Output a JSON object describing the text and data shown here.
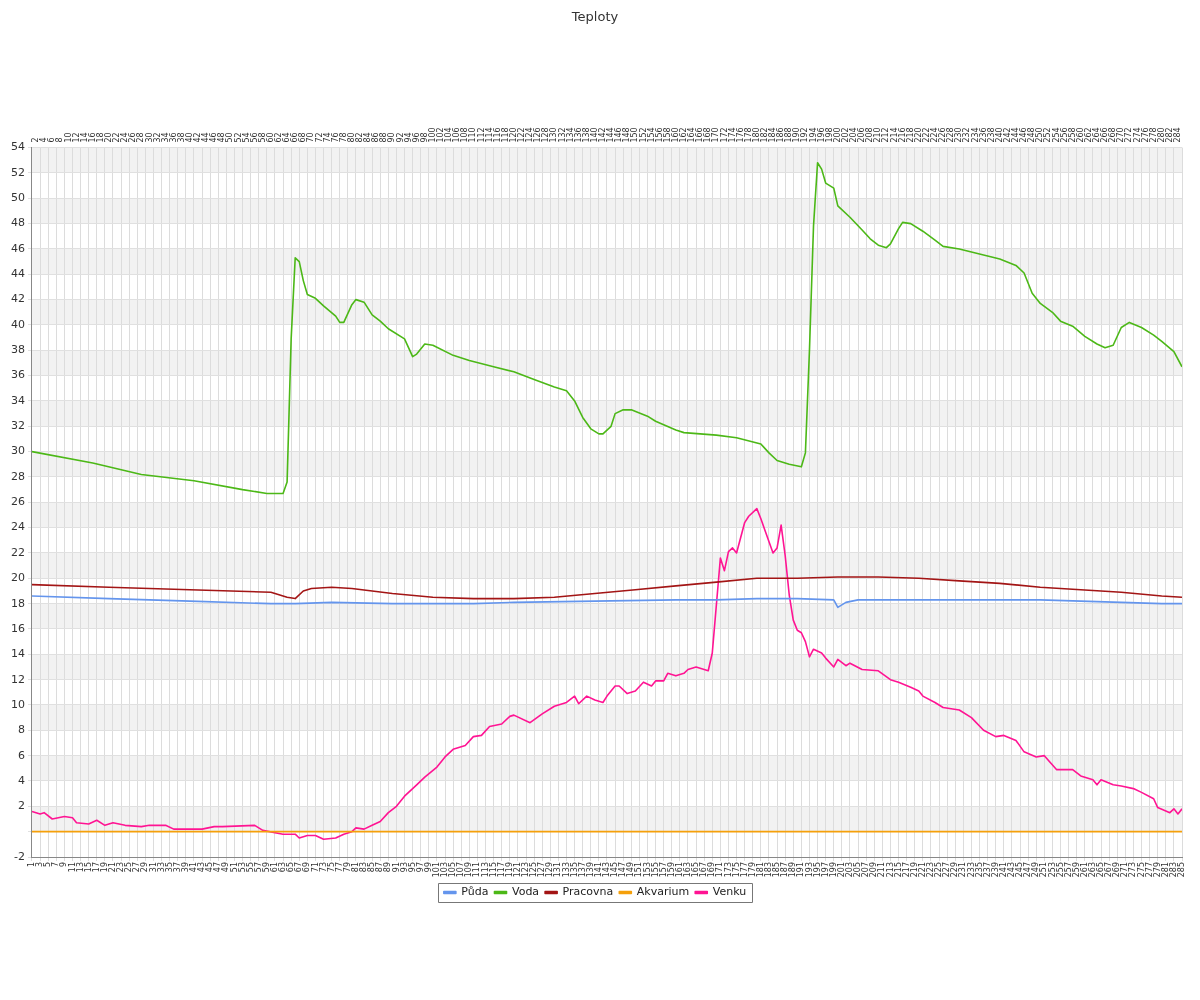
{
  "chart_data": {
    "type": "line",
    "title": "Teploty",
    "grid": true,
    "legend": "bottom",
    "marker": "none",
    "line_style": "solid",
    "xlim": [
      1,
      285
    ],
    "xticks": [
      1,
      3,
      5,
      7,
      9,
      11,
      13,
      15,
      17,
      19,
      21,
      23,
      25,
      27,
      29,
      31,
      33,
      35,
      37,
      39,
      41,
      43,
      45,
      47,
      49,
      51,
      53,
      55,
      57,
      59,
      61,
      63,
      65,
      67,
      69,
      71,
      73,
      75,
      77,
      79,
      81,
      83,
      85,
      87,
      89,
      91,
      93,
      95,
      97,
      99,
      101,
      103,
      105,
      107,
      109,
      111,
      113,
      115,
      117,
      119,
      121,
      123,
      125,
      127,
      129,
      131,
      133,
      135,
      137,
      139,
      141,
      143,
      145,
      147,
      149,
      151,
      153,
      155,
      157,
      159,
      161,
      163,
      165,
      167,
      169,
      171,
      173,
      175,
      177,
      179,
      181,
      183,
      185,
      187,
      189,
      191,
      193,
      195,
      197,
      199,
      201,
      203,
      205,
      207,
      209,
      211,
      213,
      215,
      217,
      219,
      221,
      223,
      225,
      227,
      229,
      231,
      233,
      235,
      237,
      239,
      241,
      243,
      245,
      247,
      249,
      251,
      253,
      255,
      257,
      259,
      261,
      263,
      265,
      267,
      269,
      271,
      273,
      275,
      277,
      279,
      281,
      283,
      285
    ],
    "x2lim": [
      1,
      285
    ],
    "x2ticks": [
      2,
      4,
      6,
      8,
      10,
      12,
      14,
      16,
      18,
      20,
      22,
      24,
      26,
      28,
      30,
      32,
      34,
      36,
      38,
      40,
      42,
      44,
      46,
      48,
      50,
      52,
      54,
      56,
      58,
      60,
      62,
      64,
      66,
      68,
      70,
      72,
      74,
      76,
      78,
      80,
      82,
      84,
      86,
      88,
      90,
      92,
      94,
      96,
      98,
      100,
      102,
      104,
      106,
      108,
      110,
      112,
      114,
      116,
      118,
      120,
      122,
      124,
      126,
      128,
      130,
      132,
      134,
      136,
      138,
      140,
      142,
      144,
      146,
      148,
      150,
      152,
      154,
      156,
      158,
      160,
      162,
      164,
      166,
      168,
      170,
      172,
      174,
      176,
      178,
      180,
      182,
      184,
      186,
      188,
      190,
      192,
      194,
      196,
      198,
      200,
      202,
      204,
      206,
      208,
      210,
      212,
      214,
      216,
      218,
      220,
      222,
      224,
      226,
      228,
      230,
      232,
      234,
      236,
      238,
      240,
      242,
      244,
      246,
      248,
      250,
      252,
      254,
      256,
      258,
      260,
      262,
      264,
      266,
      268,
      270,
      272,
      274,
      276,
      278,
      280,
      282,
      284
    ],
    "ylim": [
      -2,
      54
    ],
    "yticks": [
      -2,
      {
        "value": 0,
        "label": null
      },
      2,
      4,
      6,
      8,
      10,
      12,
      14,
      16,
      18,
      20,
      22,
      24,
      26,
      28,
      30,
      32,
      34,
      36,
      38,
      40,
      42,
      44,
      46,
      48,
      50,
      52,
      54
    ],
    "series": [
      {
        "name": "Půda",
        "color": "#6495ed",
        "x": [
          1,
          20,
          40,
          60,
          66,
          75,
          90,
          110,
          120,
          140,
          160,
          170,
          180,
          190,
          199,
          200,
          202,
          205,
          240,
          250,
          260,
          270,
          280,
          285
        ],
        "values": [
          18.6,
          18.4,
          18.2,
          18.0,
          18.0,
          18.1,
          18.0,
          18.0,
          18.1,
          18.2,
          18.3,
          18.3,
          18.4,
          18.4,
          18.3,
          17.7,
          18.1,
          18.3,
          18.3,
          18.3,
          18.2,
          18.1,
          18.0,
          18.0
        ]
      },
      {
        "name": "Voda",
        "color": "#4cb817",
        "x": [
          1,
          16,
          28,
          41,
          53,
          59,
          63,
          64,
          65,
          66,
          67,
          68,
          69,
          71,
          73,
          76,
          77,
          78,
          80,
          81,
          83,
          85,
          87,
          89,
          93,
          95,
          96,
          98,
          100,
          105,
          109,
          115,
          120,
          125,
          130,
          133,
          135,
          137,
          139,
          141,
          142,
          144,
          145,
          147,
          149,
          153,
          155,
          160,
          162,
          170,
          175,
          181,
          183,
          185,
          188,
          191,
          192,
          193,
          194,
          195,
          196,
          197,
          199,
          200,
          203,
          206,
          208,
          210,
          212,
          213,
          215,
          216,
          218,
          221,
          224,
          226,
          230,
          235,
          240,
          244,
          246,
          248,
          250,
          253,
          255,
          258,
          261,
          264,
          266,
          268,
          270,
          272,
          275,
          278,
          280,
          283,
          285
        ],
        "values": [
          30.0,
          29.1,
          28.2,
          27.7,
          27.0,
          26.7,
          26.7,
          27.6,
          38.9,
          45.3,
          45.0,
          43.5,
          42.4,
          42.1,
          41.5,
          40.7,
          40.2,
          40.2,
          41.6,
          42.0,
          41.8,
          40.8,
          40.3,
          39.7,
          38.9,
          37.5,
          37.7,
          38.5,
          38.4,
          37.6,
          37.2,
          36.7,
          36.3,
          35.7,
          35.1,
          34.8,
          34.0,
          32.7,
          31.8,
          31.4,
          31.4,
          32.0,
          33.0,
          33.3,
          33.3,
          32.8,
          32.4,
          31.7,
          31.5,
          31.3,
          31.1,
          30.6,
          29.9,
          29.3,
          29.0,
          28.8,
          29.9,
          38.0,
          47.8,
          52.8,
          52.3,
          51.2,
          50.8,
          49.4,
          48.5,
          47.5,
          46.8,
          46.3,
          46.1,
          46.4,
          47.6,
          48.1,
          48.0,
          47.4,
          46.7,
          46.2,
          46.0,
          45.6,
          45.2,
          44.7,
          44.1,
          42.5,
          41.7,
          41.0,
          40.3,
          39.9,
          39.1,
          38.5,
          38.2,
          38.4,
          39.8,
          40.2,
          39.8,
          39.2,
          38.7,
          37.9,
          36.7
        ]
      },
      {
        "name": "Pracovna",
        "color": "#a31515",
        "x": [
          1,
          20,
          40,
          60,
          64,
          66,
          68,
          70,
          75,
          80,
          85,
          90,
          100,
          110,
          120,
          130,
          140,
          150,
          160,
          170,
          180,
          190,
          200,
          210,
          220,
          230,
          240,
          250,
          260,
          270,
          280,
          285
        ],
        "values": [
          19.5,
          19.3,
          19.1,
          18.9,
          18.5,
          18.4,
          19.0,
          19.2,
          19.3,
          19.2,
          19.0,
          18.8,
          18.5,
          18.4,
          18.4,
          18.5,
          18.8,
          19.1,
          19.4,
          19.7,
          20.0,
          20.0,
          20.1,
          20.1,
          20.0,
          19.8,
          19.6,
          19.3,
          19.1,
          18.9,
          18.6,
          18.5
        ]
      },
      {
        "name": "Akvarium",
        "color": "#f5a00a",
        "x": [
          1,
          285
        ],
        "values": [
          0,
          0
        ]
      },
      {
        "name": "Venku",
        "color": "#ff1493",
        "x": [
          1,
          3,
          4,
          6,
          9,
          11,
          12,
          15,
          17,
          19,
          21,
          24,
          28,
          30,
          34,
          36,
          43,
          46,
          48,
          56,
          58,
          63,
          66,
          67,
          69,
          71,
          73,
          76,
          78,
          80,
          81,
          83,
          85,
          87,
          89,
          91,
          93,
          96,
          98,
          101,
          103,
          105,
          108,
          110,
          112,
          114,
          117,
          119,
          120,
          124,
          127,
          130,
          133,
          135,
          136,
          138,
          140,
          142,
          143,
          145,
          146,
          148,
          150,
          152,
          154,
          155,
          157,
          158,
          160,
          162,
          163,
          165,
          168,
          169,
          171,
          172,
          173,
          174,
          175,
          177,
          178,
          180,
          181,
          182,
          184,
          185,
          186,
          187,
          188,
          189,
          190,
          191,
          192,
          193,
          194,
          196,
          197,
          199,
          200,
          202,
          203,
          206,
          210,
          213,
          215,
          218,
          220,
          221,
          224,
          226,
          230,
          233,
          236,
          239,
          241,
          244,
          246,
          249,
          251,
          254,
          258,
          260,
          263,
          264,
          265,
          268,
          270,
          273,
          275,
          278,
          279,
          282,
          283,
          284,
          285
        ],
        "values": [
          1.6,
          1.4,
          1.5,
          1.0,
          1.2,
          1.1,
          0.7,
          0.6,
          0.9,
          0.5,
          0.7,
          0.5,
          0.4,
          0.5,
          0.5,
          0.2,
          0.2,
          0.4,
          0.4,
          0.5,
          0.1,
          -0.2,
          -0.2,
          -0.5,
          -0.3,
          -0.3,
          -0.6,
          -0.5,
          -0.2,
          0.0,
          0.3,
          0.2,
          0.5,
          0.8,
          1.5,
          2.0,
          2.8,
          3.7,
          4.3,
          5.1,
          5.9,
          6.5,
          6.8,
          7.5,
          7.6,
          8.3,
          8.5,
          9.1,
          9.2,
          8.6,
          9.3,
          9.9,
          10.2,
          10.7,
          10.1,
          10.7,
          10.4,
          10.2,
          10.7,
          11.5,
          11.5,
          10.9,
          11.1,
          11.8,
          11.5,
          11.9,
          11.9,
          12.5,
          12.3,
          12.5,
          12.8,
          13.0,
          12.7,
          14.1,
          21.6,
          20.6,
          22.1,
          22.4,
          22.0,
          24.4,
          24.9,
          25.5,
          24.7,
          23.8,
          22.0,
          22.4,
          24.2,
          21.8,
          18.7,
          16.7,
          15.9,
          15.7,
          15.0,
          13.8,
          14.4,
          14.1,
          13.7,
          13.0,
          13.6,
          13.1,
          13.3,
          12.8,
          12.7,
          12.0,
          11.8,
          11.4,
          11.1,
          10.7,
          10.2,
          9.8,
          9.6,
          9.0,
          8.0,
          7.5,
          7.6,
          7.2,
          6.3,
          5.9,
          6.0,
          4.9,
          4.9,
          4.4,
          4.1,
          3.7,
          4.1,
          3.7,
          3.6,
          3.4,
          3.1,
          2.6,
          1.9,
          1.5,
          1.8,
          1.4,
          1.8
        ]
      }
    ]
  }
}
